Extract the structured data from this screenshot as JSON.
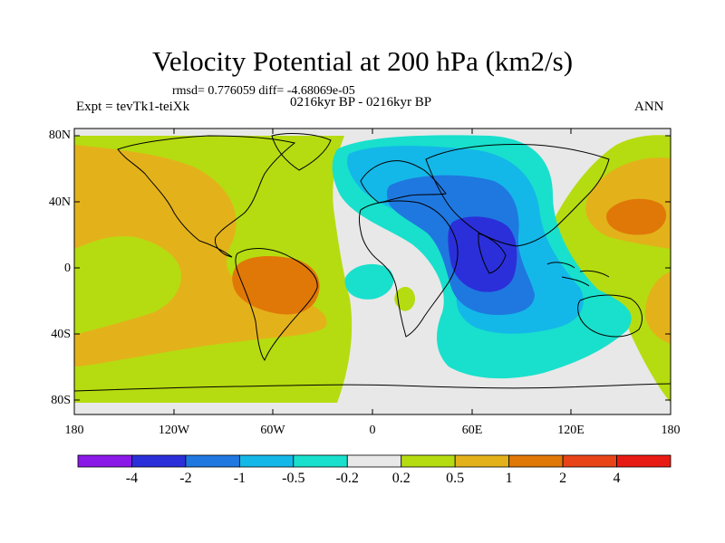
{
  "title": "Velocity Potential at 200 hPa (km2/s)",
  "stats": "rmsd= 0.776059 diff= -4.68069e-05",
  "experiment": "Expt = tevTk1-teiXk",
  "period": "0216kyr BP - 0216kyr BP",
  "season": "ANN",
  "y_axis": [
    "80N",
    "40N",
    "0",
    "40S",
    "80S"
  ],
  "x_axis": [
    "180",
    "120W",
    "60W",
    "0",
    "60E",
    "120E",
    "180"
  ],
  "colorbar": {
    "labels": [
      "-4",
      "-2",
      "-1",
      "-0.5",
      "-0.2",
      "0.2",
      "0.5",
      "1",
      "2",
      "4"
    ],
    "colors": [
      "#8a19e8",
      "#2b2fd9",
      "#1f78e0",
      "#14b8e8",
      "#18e0cc",
      "#e8e8e8",
      "#b5dc10",
      "#e3b21a",
      "#e07808",
      "#e84418",
      "#e81b14"
    ]
  },
  "regions": {
    "background": "#e8e8e8",
    "positive_weak": "#b5dc10",
    "positive_mid": "#e3b21a",
    "positive_strong": "#e07808",
    "negative_weak": "#18e0cc",
    "negative_mid": "#14b8e8",
    "negative_strong": "#1f78e0",
    "negative_core": "#2b2fd9"
  }
}
